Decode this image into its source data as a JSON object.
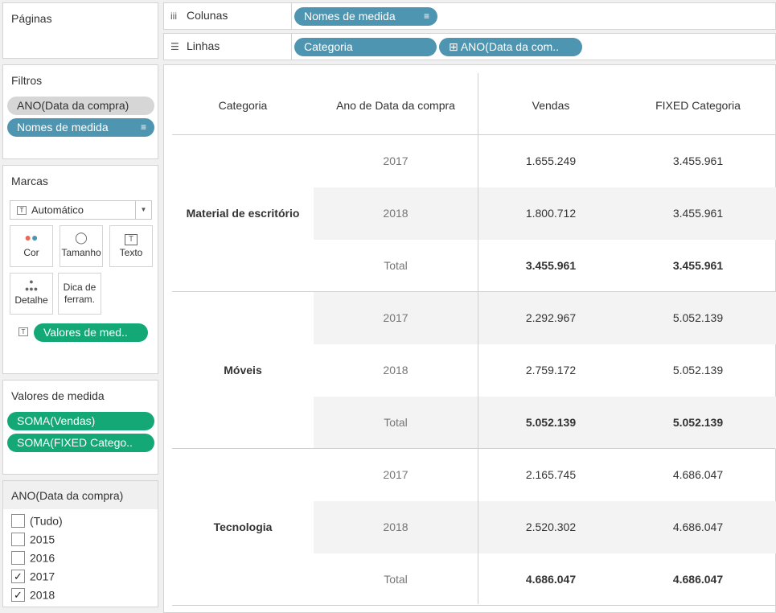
{
  "pages_card": {
    "title": "Páginas"
  },
  "filters_card": {
    "title": "Filtros",
    "pills": [
      "ANO(Data da compra)",
      "Nomes de medida"
    ]
  },
  "marks_card": {
    "title": "Marcas",
    "mark_type": "Automático",
    "buttons": [
      "Cor",
      "Tamanho",
      "Texto",
      "Detalhe",
      "Dica de ferram."
    ],
    "detail_pill": "Valores de med.."
  },
  "measure_values_card": {
    "title": "Valores de medida",
    "pills": [
      "SOMA(Vendas)",
      "SOMA(FIXED Catego.."
    ]
  },
  "year_filter_card": {
    "title": "ANO(Data da compra)",
    "options": [
      {
        "label": "(Tudo)",
        "checked": false
      },
      {
        "label": "2015",
        "checked": false
      },
      {
        "label": "2016",
        "checked": false
      },
      {
        "label": "2017",
        "checked": true
      },
      {
        "label": "2018",
        "checked": true
      }
    ],
    "check_mark": "✓"
  },
  "shelves": {
    "columns_label": "Colunas",
    "columns_pill": "Nomes de medida",
    "rows_label": "Linhas",
    "rows_pills": [
      "Categoria",
      "⊞ ANO(Data da com.."
    ]
  },
  "table": {
    "headers": [
      "Categoria",
      "Ano de Data da compra",
      "Vendas",
      "FIXED Categoria"
    ],
    "groups": [
      {
        "category": "Material de escritório",
        "rows": [
          {
            "year": "2017",
            "vendas": "1.655.249",
            "fixed": "3.455.961"
          },
          {
            "year": "2018",
            "vendas": "1.800.712",
            "fixed": "3.455.961"
          },
          {
            "year": "Total",
            "vendas": "3.455.961",
            "fixed": "3.455.961"
          }
        ]
      },
      {
        "category": "Móveis",
        "rows": [
          {
            "year": "2017",
            "vendas": "2.292.967",
            "fixed": "5.052.139"
          },
          {
            "year": "2018",
            "vendas": "2.759.172",
            "fixed": "5.052.139"
          },
          {
            "year": "Total",
            "vendas": "5.052.139",
            "fixed": "5.052.139"
          }
        ]
      },
      {
        "category": "Tecnologia",
        "rows": [
          {
            "year": "2017",
            "vendas": "2.165.745",
            "fixed": "4.686.047"
          },
          {
            "year": "2018",
            "vendas": "2.520.302",
            "fixed": "4.686.047"
          },
          {
            "year": "Total",
            "vendas": "4.686.047",
            "fixed": "4.686.047"
          }
        ]
      }
    ]
  },
  "colors": {
    "dimension_pill": "#4e95b1",
    "measure_pill": "#13a876",
    "filter_pill": "#d6d6d6"
  }
}
